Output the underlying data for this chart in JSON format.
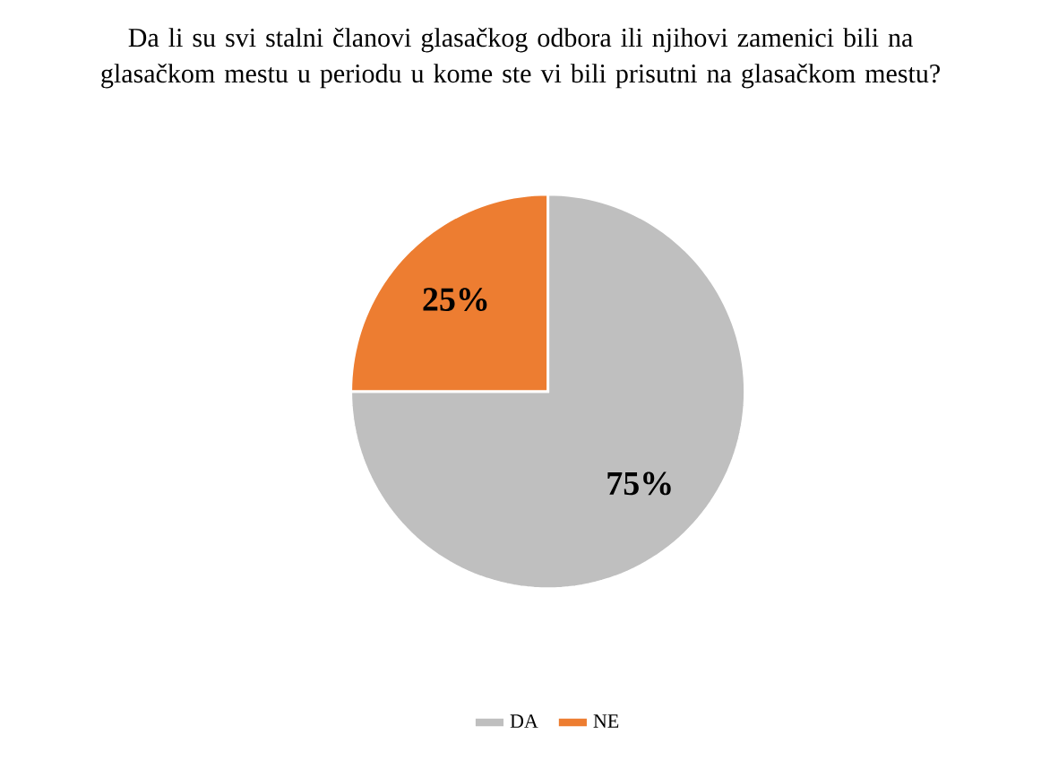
{
  "chart_data": {
    "type": "pie",
    "title": "Da li su svi stalni članovi glasačkog odbora ili njihovi zamenici bili na glasačkom mestu u periodu u kome ste vi bili prisutni na glasačkom mestu?",
    "categories": [
      "DA",
      "NE"
    ],
    "values": [
      75,
      25
    ],
    "colors": [
      "#bfbfbf",
      "#ed7d31"
    ],
    "value_labels": [
      "75%",
      "25%"
    ],
    "legend": "bottom"
  }
}
